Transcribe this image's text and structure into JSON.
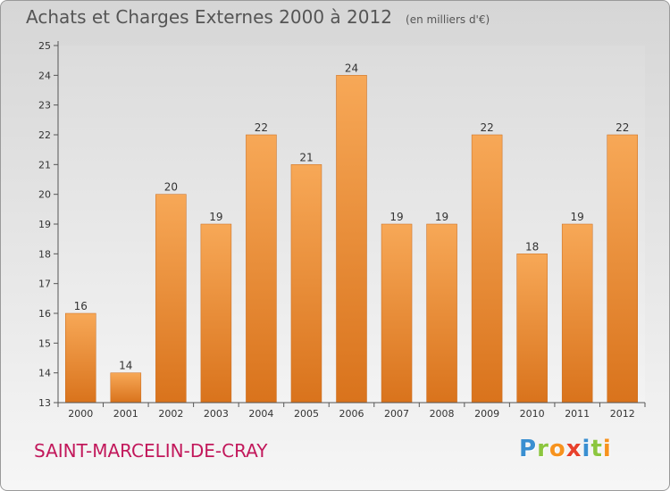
{
  "header": {
    "title": "Achats et Charges Externes 2000 à 2012",
    "subtitle": "(en milliers d'€)"
  },
  "footer": {
    "commune": "SAINT-MARCELIN-DE-CRAY",
    "logo_letters": [
      {
        "ch": "P",
        "color": "#3a8fd1"
      },
      {
        "ch": "r",
        "color": "#8cc63f"
      },
      {
        "ch": "o",
        "color": "#f7931e"
      },
      {
        "ch": "x",
        "color": "#e8412c"
      },
      {
        "ch": "i",
        "color": "#3a8fd1"
      },
      {
        "ch": "t",
        "color": "#8cc63f"
      },
      {
        "ch": "i",
        "color": "#f7931e"
      }
    ]
  },
  "chart_data": {
    "type": "bar",
    "title": "Achats et Charges Externes 2000 à 2012",
    "subtitle": "(en milliers d'€)",
    "categories": [
      "2000",
      "2001",
      "2002",
      "2003",
      "2004",
      "2005",
      "2006",
      "2007",
      "2008",
      "2009",
      "2010",
      "2011",
      "2012"
    ],
    "values": [
      16,
      14,
      20,
      19,
      22,
      21,
      24,
      19,
      19,
      22,
      18,
      19,
      22
    ],
    "ylim": [
      13,
      25
    ],
    "yticks": [
      13,
      14,
      15,
      16,
      17,
      18,
      19,
      20,
      21,
      22,
      23,
      24,
      25
    ],
    "xlabel": "",
    "ylabel": "",
    "grid": false,
    "bar_color": "#f29a3a"
  }
}
